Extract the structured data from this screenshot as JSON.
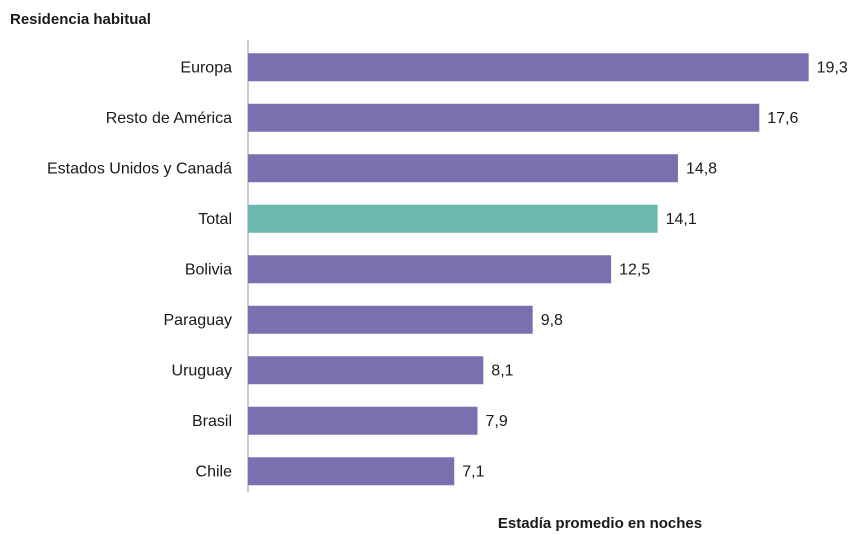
{
  "chart_data": {
    "type": "hbar",
    "title": "Residencia habitual",
    "x_label": "Estadía promedio en noches",
    "categories": [
      "Europa",
      "Resto de América",
      "Estados Unidos y Canadá",
      "Total",
      "Bolivia",
      "Paraguay",
      "Uruguay",
      "Brasil",
      "Chile"
    ],
    "values": [
      19.3,
      17.6,
      14.8,
      14.1,
      12.5,
      9.8,
      8.1,
      7.9,
      7.1
    ],
    "value_labels": [
      "19,3",
      "17,6",
      "14,8",
      "14,1",
      "12,5",
      "9,8",
      "8,1",
      "7,9",
      "7,1"
    ],
    "colors": [
      "#7b6faf",
      "#7b6faf",
      "#7b6faf",
      "#6bb8b0",
      "#7b6faf",
      "#7b6faf",
      "#7b6faf",
      "#7b6faf",
      "#7b6faf"
    ],
    "xlim": [
      0,
      20
    ]
  }
}
